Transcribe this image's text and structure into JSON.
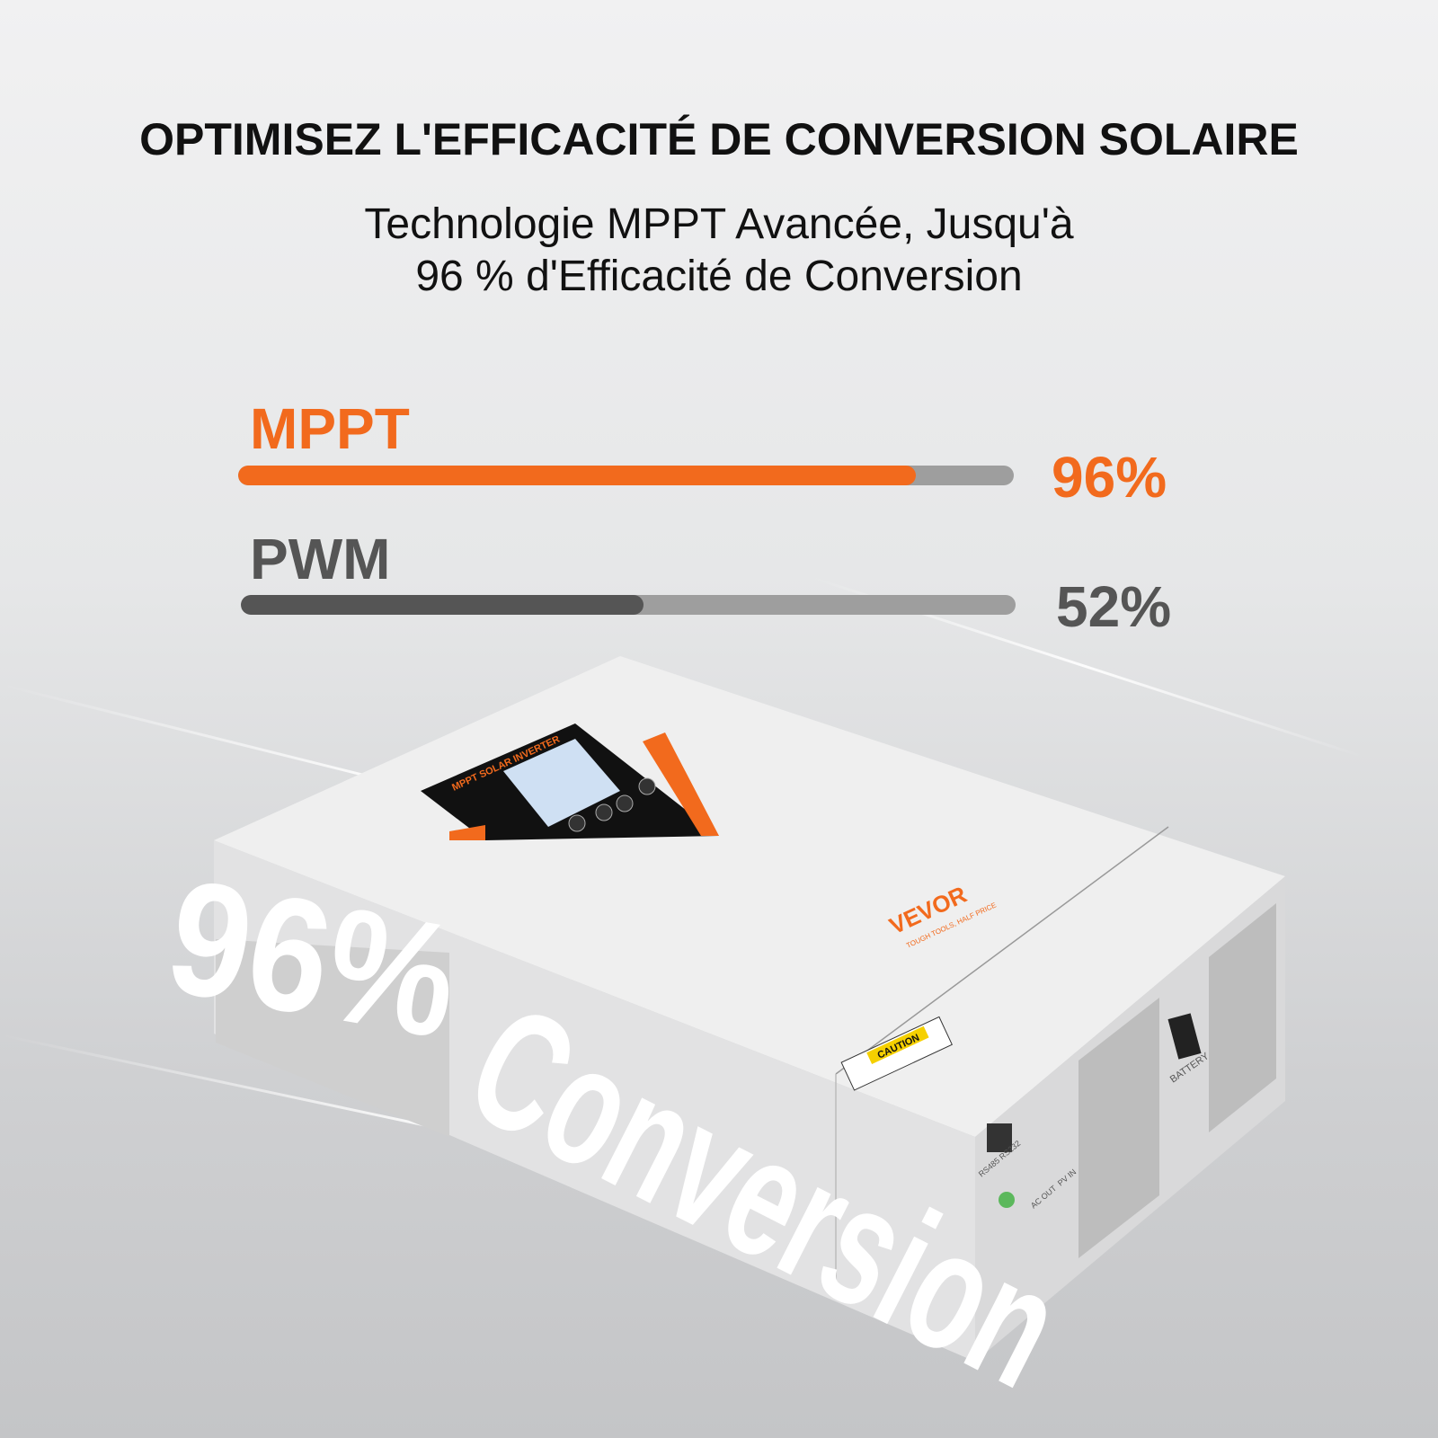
{
  "header": {
    "title": "OPTIMISEZ L'EFFICACITÉ DE CONVERSION SOLAIRE",
    "subtitle_line1": "Technologie MPPT Avancée, Jusqu'à",
    "subtitle_line2": "96 % d'Efficacité de Conversion"
  },
  "comparison": [
    {
      "label": "MPPT",
      "value_text": "96%",
      "value": 96,
      "color": "#f26a1d",
      "label_color": "#f26a1d"
    },
    {
      "label": "PWM",
      "value_text": "52%",
      "value": 52,
      "color": "#555555",
      "label_color": "#555555"
    }
  ],
  "product": {
    "panel_title": "MPPT SOLAR INVERTER",
    "brand": "VEVOR",
    "brand_tagline": "TOUGH TOOLS, HALF PRICE",
    "caution": "CAUTION",
    "battery": "BATTERY",
    "ports": "RS485  RS232",
    "ac_out": "AC OUT",
    "pv_in": "PV IN",
    "accent": "#f26a1d"
  },
  "overlay": {
    "line1": "96%",
    "line2": "Conversion"
  }
}
